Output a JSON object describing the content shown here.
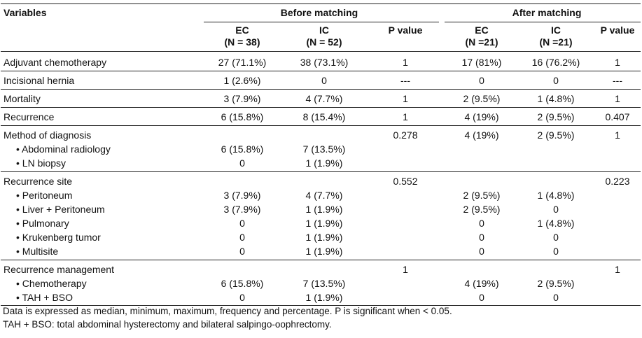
{
  "header": {
    "variables": "Variables",
    "before": "Before matching",
    "after": "After matching",
    "ec_before": "EC",
    "ec_before_n": "(N = 38)",
    "ic_before": "IC",
    "ic_before_n": "(N = 52)",
    "p_before": "P value",
    "ec_after": "EC",
    "ec_after_n": "(N =21)",
    "ic_after": "IC",
    "ic_after_n": "(N =21)",
    "p_after": "P value"
  },
  "rows": [
    {
      "var": "Adjuvant chemotherapy",
      "ec1": "27 (71.1%)",
      "ic1": "38 (73.1%)",
      "p1": "1",
      "ec2": "17 (81%)",
      "ic2": "16 (76.2%)",
      "p2": "1"
    },
    {
      "var": "Incisional hernia",
      "ec1": "1 (2.6%)",
      "ic1": "0",
      "p1": "---",
      "ec2": "0",
      "ic2": "0",
      "p2": "---"
    },
    {
      "var": "Mortality",
      "ec1": "3 (7.9%)",
      "ic1": "4 (7.7%)",
      "p1": "1",
      "ec2": "2 (9.5%)",
      "ic2": "1 (4.8%)",
      "p2": "1"
    },
    {
      "var": "Recurrence",
      "ec1": "6 (15.8%)",
      "ic1": "8 (15.4%)",
      "p1": "1",
      "ec2": "4 (19%)",
      "ic2": "2 (9.5%)",
      "p2": "0.407"
    },
    {
      "var": "Method of diagnosis",
      "ec1": "",
      "ic1": "",
      "p1": "0.278",
      "ec2": "4 (19%)",
      "ic2": "2 (9.5%)",
      "p2": "1"
    },
    {
      "var": "• Abdominal radiology",
      "ec1": "6 (15.8%)",
      "ic1": "7 (13.5%)",
      "p1": "",
      "ec2": "",
      "ic2": "",
      "p2": ""
    },
    {
      "var": "• LN biopsy",
      "ec1": "0",
      "ic1": "1 (1.9%)",
      "p1": "",
      "ec2": "",
      "ic2": "",
      "p2": ""
    },
    {
      "var": "Recurrence site",
      "ec1": "",
      "ic1": "",
      "p1": "0.552",
      "ec2": "",
      "ic2": "",
      "p2": "0.223"
    },
    {
      "var": "• Peritoneum",
      "ec1": "3 (7.9%)",
      "ic1": "4 (7.7%)",
      "p1": "",
      "ec2": "2 (9.5%)",
      "ic2": "1 (4.8%)",
      "p2": ""
    },
    {
      "var": "• Liver + Peritoneum",
      "ec1": "3 (7.9%)",
      "ic1": "1 (1.9%)",
      "p1": "",
      "ec2": "2 (9.5%)",
      "ic2": "0",
      "p2": ""
    },
    {
      "var": "• Pulmonary",
      "ec1": "0",
      "ic1": "1 (1.9%)",
      "p1": "",
      "ec2": "0",
      "ic2": "1 (4.8%)",
      "p2": ""
    },
    {
      "var": "• Krukenberg tumor",
      "ec1": "0",
      "ic1": "1 (1.9%)",
      "p1": "",
      "ec2": "0",
      "ic2": "0",
      "p2": ""
    },
    {
      "var": "• Multisite",
      "ec1": "0",
      "ic1": "1 (1.9%)",
      "p1": "",
      "ec2": "0",
      "ic2": "0",
      "p2": ""
    },
    {
      "var": "Recurrence management",
      "ec1": "",
      "ic1": "",
      "p1": "1",
      "ec2": "",
      "ic2": "",
      "p2": "1"
    },
    {
      "var": "• Chemotherapy",
      "ec1": "6 (15.8%)",
      "ic1": "7 (13.5%)",
      "p1": "",
      "ec2": "4 (19%)",
      "ic2": "2 (9.5%)",
      "p2": ""
    },
    {
      "var": "• TAH + BSO",
      "ec1": "0",
      "ic1": "1 (1.9%)",
      "p1": "",
      "ec2": "0",
      "ic2": "0",
      "p2": ""
    }
  ],
  "footnotes": [
    "Data is expressed as median, minimum, maximum, frequency and percentage. P is significant when < 0.05.",
    "TAH + BSO: total abdominal hysterectomy and bilateral salpingo-oophrectomy."
  ]
}
